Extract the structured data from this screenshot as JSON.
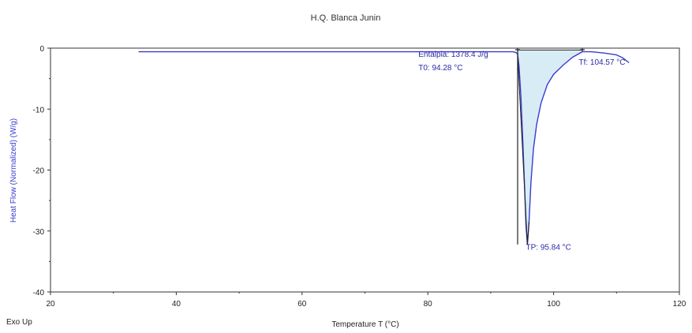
{
  "chart_data": {
    "type": "line",
    "title": "H.Q. Blanca Junin",
    "xlabel": "Temperature T (°C)",
    "ylabel": "Heat Flow (Normalized) (W/g)",
    "corner_label": "Exo Up",
    "xlim": [
      20,
      120
    ],
    "ylim": [
      -40,
      0
    ],
    "xticks": [
      "20",
      "40",
      "60",
      "80",
      "100",
      "120"
    ],
    "yticks": [
      "0",
      "-10",
      "-20",
      "-30",
      "-40"
    ],
    "grid": false,
    "series": [
      {
        "x": [
          34,
          50,
          70,
          85,
          90,
          92,
          93.5,
          94.0,
          94.28,
          94.5,
          94.8,
          95.1,
          95.4,
          95.6,
          95.84,
          96.1,
          96.4,
          96.8,
          97.3,
          98.0,
          99.0,
          100.0,
          101.5,
          103.0,
          104.57,
          106,
          108,
          110,
          111,
          112
        ],
        "y": [
          -0.6,
          -0.6,
          -0.6,
          -0.6,
          -0.6,
          -0.6,
          -0.6,
          -0.7,
          -1.0,
          -3.0,
          -8.0,
          -15.0,
          -23.0,
          -29.0,
          -32.2,
          -28.5,
          -22.0,
          -16.5,
          -12.5,
          -9.0,
          -6.0,
          -4.3,
          -2.8,
          -1.5,
          -0.6,
          -0.6,
          -0.8,
          -1.1,
          -1.6,
          -2.4
        ]
      }
    ],
    "shaded_region": {
      "x_from": 94.28,
      "x_to": 104.57,
      "baseline_y": -0.3
    },
    "markers": [
      {
        "x": 94.28,
        "y_top": 0,
        "y_bottom": -32.2
      },
      {
        "x": 104.57,
        "y_top": 0,
        "y_bottom": -0.5
      }
    ],
    "annotations": [
      {
        "text": "Entalpia: 1378.4 J/g",
        "x": 78.5,
        "y": -1.4
      },
      {
        "text": "T0: 94.28 °C",
        "x": 78.5,
        "y": -3.6
      },
      {
        "text": "Tf: 104.57 °C",
        "x": 104.0,
        "y": -2.7
      },
      {
        "text": "TP: 95.84 °C",
        "x": 95.6,
        "y": -33.1
      }
    ],
    "line_color": "#3b3bd0",
    "fill_color": "#d8ecf6",
    "marker_color": "#222222"
  }
}
